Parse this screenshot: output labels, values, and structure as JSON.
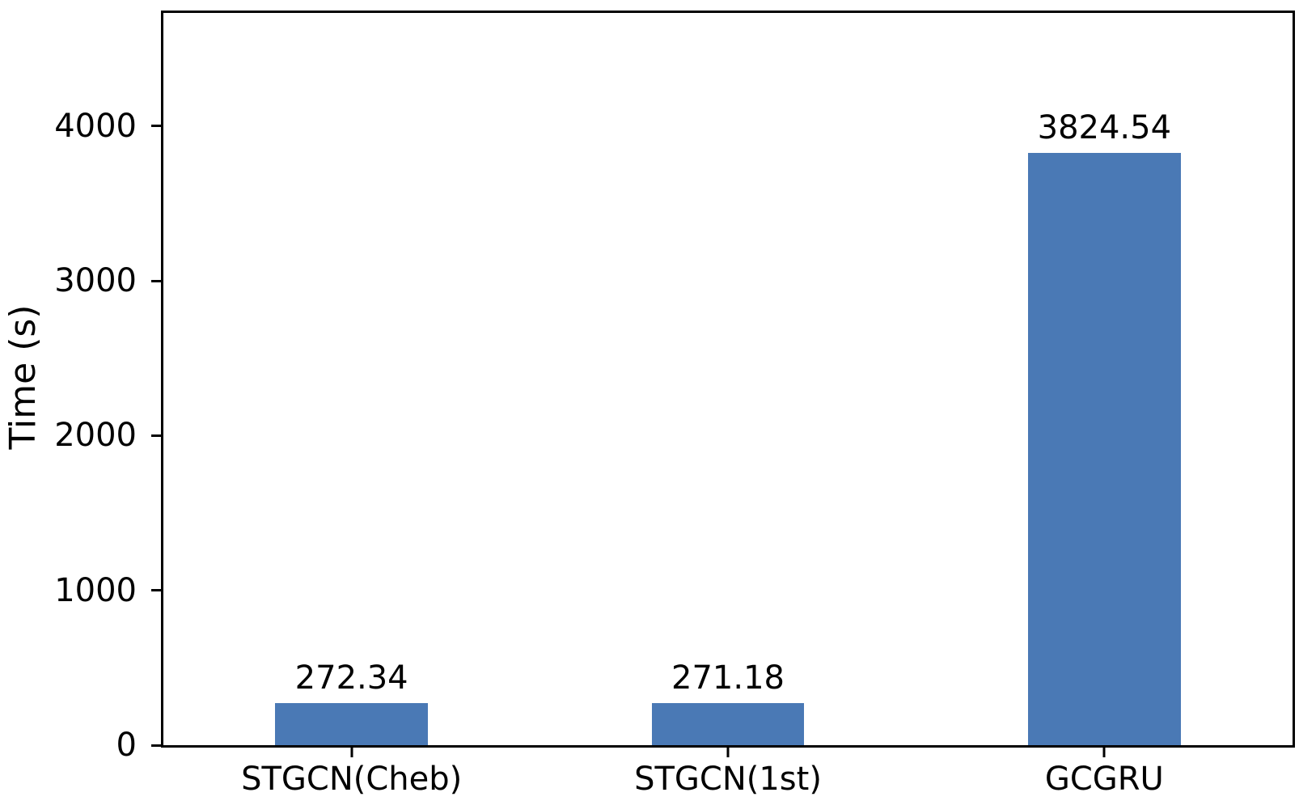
{
  "figure": {
    "background": "#ffffff",
    "text_color": "#000000",
    "spine_color": "#000000"
  },
  "chart_data": {
    "type": "bar",
    "categories": [
      "STGCN(Cheb)",
      "STGCN(1st)",
      "GCGRU"
    ],
    "values": [
      272.34,
      271.18,
      3824.54
    ],
    "value_labels": [
      "272.34",
      "271.18",
      "3824.54"
    ],
    "title": "",
    "xlabel": "",
    "ylabel": "Time (s)",
    "ylim": [
      0,
      4730
    ],
    "yticks": [
      0,
      1000,
      2000,
      3000,
      4000
    ],
    "ytick_labels": [
      "0",
      "1000",
      "2000",
      "3000",
      "4000"
    ],
    "bar_color": "#4a79b5",
    "bar_width_fraction": 0.405,
    "grid": false,
    "legend_position": "none"
  }
}
